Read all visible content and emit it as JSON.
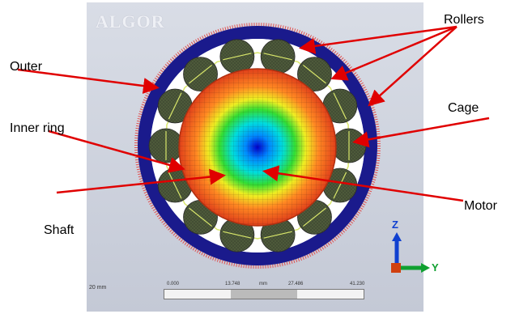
{
  "watermark": "ALGOR",
  "labels": {
    "outer": "Outer",
    "inner_ring": "Inner ring",
    "shaft": "Shaft",
    "rollers": "Rollers",
    "cage": "Cage",
    "motor": "Motor"
  },
  "axes": {
    "z": "Z",
    "y": "Y"
  },
  "scale": {
    "length": "20 mm",
    "ticks": [
      "0.000",
      "13.748",
      "mm",
      "27.486",
      "41.230"
    ]
  },
  "colors": {
    "outer_ring": "#1a1a8c",
    "roller": "#4d5a3a",
    "cage_line": "#d8e66a",
    "arrow": "#e00000",
    "axis_z": "#1040d0",
    "axis_y": "#10a030"
  }
}
